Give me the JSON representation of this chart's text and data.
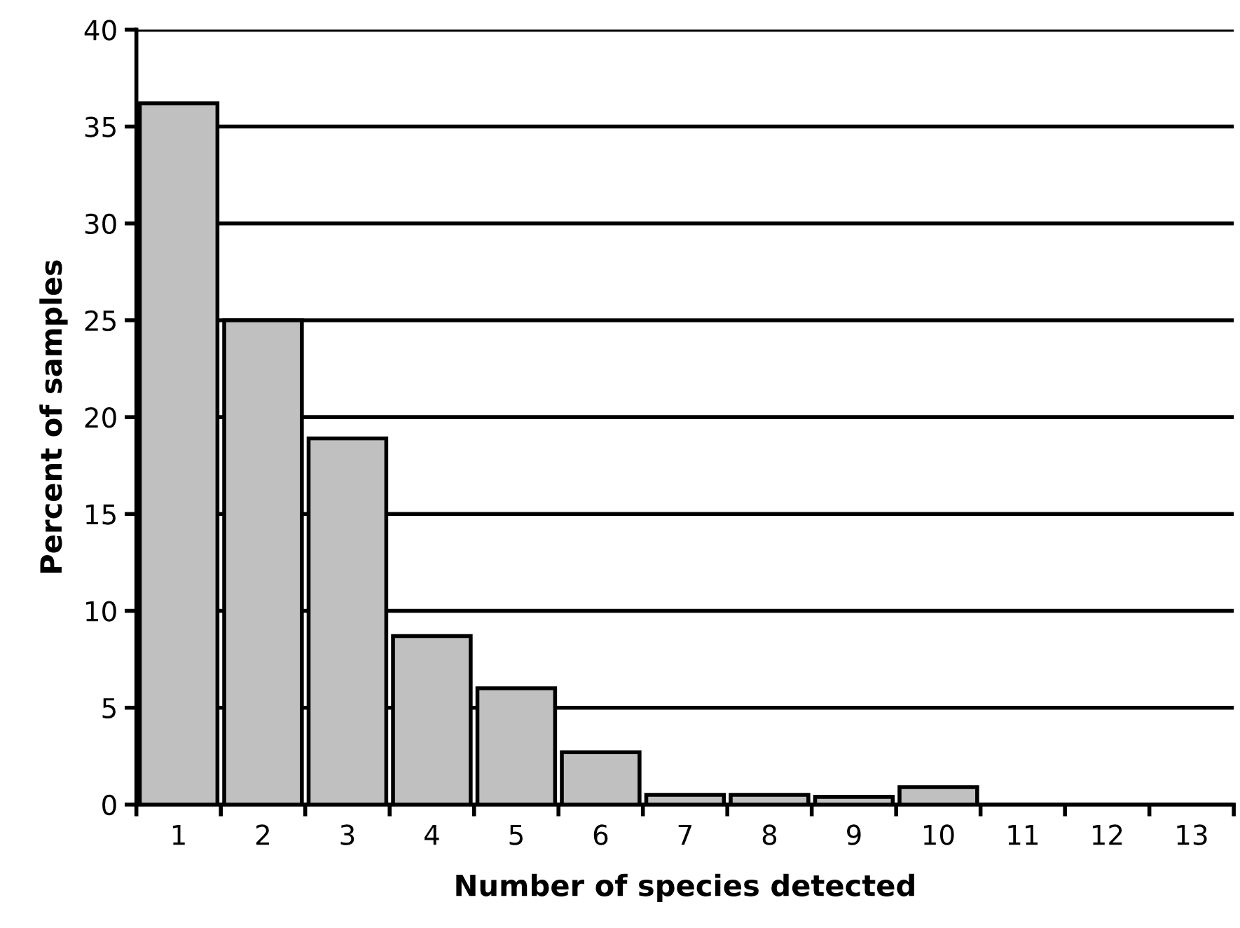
{
  "chart_data": {
    "type": "bar",
    "xlabel": "Number of species detected",
    "ylabel": "Percent of samples",
    "categories": [
      "1",
      "2",
      "3",
      "4",
      "5",
      "6",
      "7",
      "8",
      "9",
      "10",
      "11",
      "12",
      "13"
    ],
    "values": [
      36.2,
      25.0,
      18.9,
      8.7,
      6.0,
      2.7,
      0.5,
      0.5,
      0.4,
      0.9,
      0,
      0,
      0
    ],
    "color": "#c0c0c0",
    "ylim": [
      0,
      40
    ],
    "yticks": [
      0,
      5,
      10,
      15,
      20,
      25,
      30,
      35,
      40
    ],
    "grid": "y",
    "legend": false
  }
}
